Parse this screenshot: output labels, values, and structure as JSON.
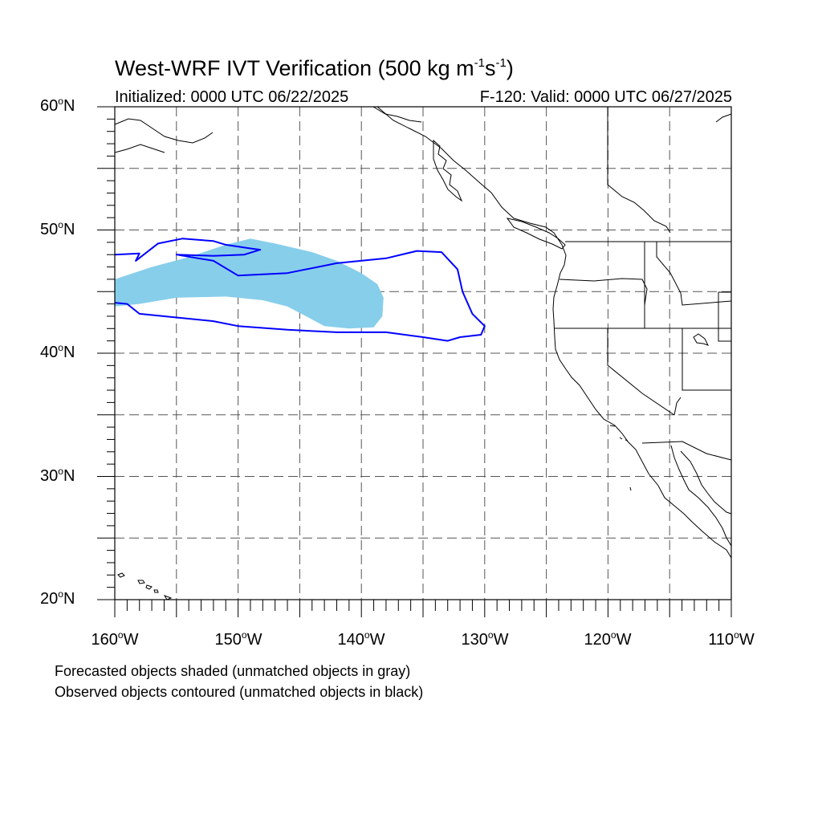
{
  "title": {
    "main": "West-WRF IVT Verification (500 kg m",
    "exp1": "-1",
    "mid": "s",
    "exp2": "-1",
    "close": ")"
  },
  "subtitle": {
    "left": "Initialized: 0000 UTC 06/22/2025",
    "right": "F-120: Valid: 0000 UTC 06/27/2025"
  },
  "captions": {
    "line1": "Forecasted objects shaded (unmatched objects in gray)",
    "line2": "Observed objects contoured (unmatched objects in black)"
  },
  "axes": {
    "lat_labels": [
      {
        "value": "60",
        "hemi": "N"
      },
      {
        "value": "50",
        "hemi": "N"
      },
      {
        "value": "40",
        "hemi": "N"
      },
      {
        "value": "30",
        "hemi": "N"
      },
      {
        "value": "20",
        "hemi": "N"
      }
    ],
    "lon_labels": [
      {
        "value": "160",
        "hemi": "W"
      },
      {
        "value": "150",
        "hemi": "W"
      },
      {
        "value": "140",
        "hemi": "W"
      },
      {
        "value": "130",
        "hemi": "W"
      },
      {
        "value": "120",
        "hemi": "W"
      },
      {
        "value": "110",
        "hemi": "W"
      }
    ],
    "degree_symbol": "o",
    "lat_range": [
      20,
      60
    ],
    "lon_range": [
      -160,
      -110
    ],
    "grid_step_degrees": 5,
    "grid": true
  },
  "colors": {
    "forecast_fill": "#87ceeb",
    "observed_contour": "#0000ff",
    "coastline": "#000000",
    "grid": "#555555"
  },
  "objects": {
    "forecast_shaded": {
      "description_visible": false,
      "outline_lonlat": [
        [
          -160,
          46
        ],
        [
          -157,
          47
        ],
        [
          -154,
          47.8
        ],
        [
          -151,
          48.8
        ],
        [
          -149,
          49.3
        ],
        [
          -147,
          48.9
        ],
        [
          -144,
          48.2
        ],
        [
          -142,
          47.5
        ],
        [
          -140,
          46.5
        ],
        [
          -138.7,
          45.6
        ],
        [
          -138.2,
          44.5
        ],
        [
          -138.3,
          43
        ],
        [
          -139,
          42.1
        ],
        [
          -141,
          42
        ],
        [
          -143,
          42.2
        ],
        [
          -144.5,
          43
        ],
        [
          -146,
          43.8
        ],
        [
          -148,
          44.3
        ],
        [
          -151,
          44.6
        ],
        [
          -155,
          44.5
        ],
        [
          -158,
          44
        ],
        [
          -160,
          43.8
        ]
      ]
    },
    "observed_contour": {
      "outline_lonlat": [
        [
          -160,
          48
        ],
        [
          -158,
          48.1
        ],
        [
          -158.3,
          47.5
        ],
        [
          -156.5,
          48.9
        ],
        [
          -154.5,
          49.3
        ],
        [
          -152,
          49.1
        ],
        [
          -151,
          48.8
        ],
        [
          -149,
          48.5
        ],
        [
          -148.2,
          48.4
        ],
        [
          -149.5,
          48
        ],
        [
          -152,
          47.9
        ],
        [
          -155,
          48
        ],
        [
          -152,
          47.5
        ],
        [
          -150,
          46.3
        ],
        [
          -146,
          46.5
        ],
        [
          -142,
          47.3
        ],
        [
          -138,
          47.7
        ],
        [
          -135.5,
          48.3
        ],
        [
          -133.5,
          48.2
        ],
        [
          -132.2,
          46.8
        ],
        [
          -131.8,
          45
        ],
        [
          -131,
          43.2
        ],
        [
          -130,
          42.2
        ],
        [
          -130.3,
          41.5
        ],
        [
          -132,
          41.3
        ],
        [
          -133,
          41
        ],
        [
          -135,
          41.3
        ],
        [
          -138,
          41.7
        ],
        [
          -142,
          41.7
        ],
        [
          -146,
          41.9
        ],
        [
          -150,
          42.2
        ],
        [
          -152,
          42.6
        ],
        [
          -155,
          42.9
        ],
        [
          -158,
          43.2
        ],
        [
          -159,
          44
        ],
        [
          -160,
          44.1
        ]
      ]
    }
  }
}
